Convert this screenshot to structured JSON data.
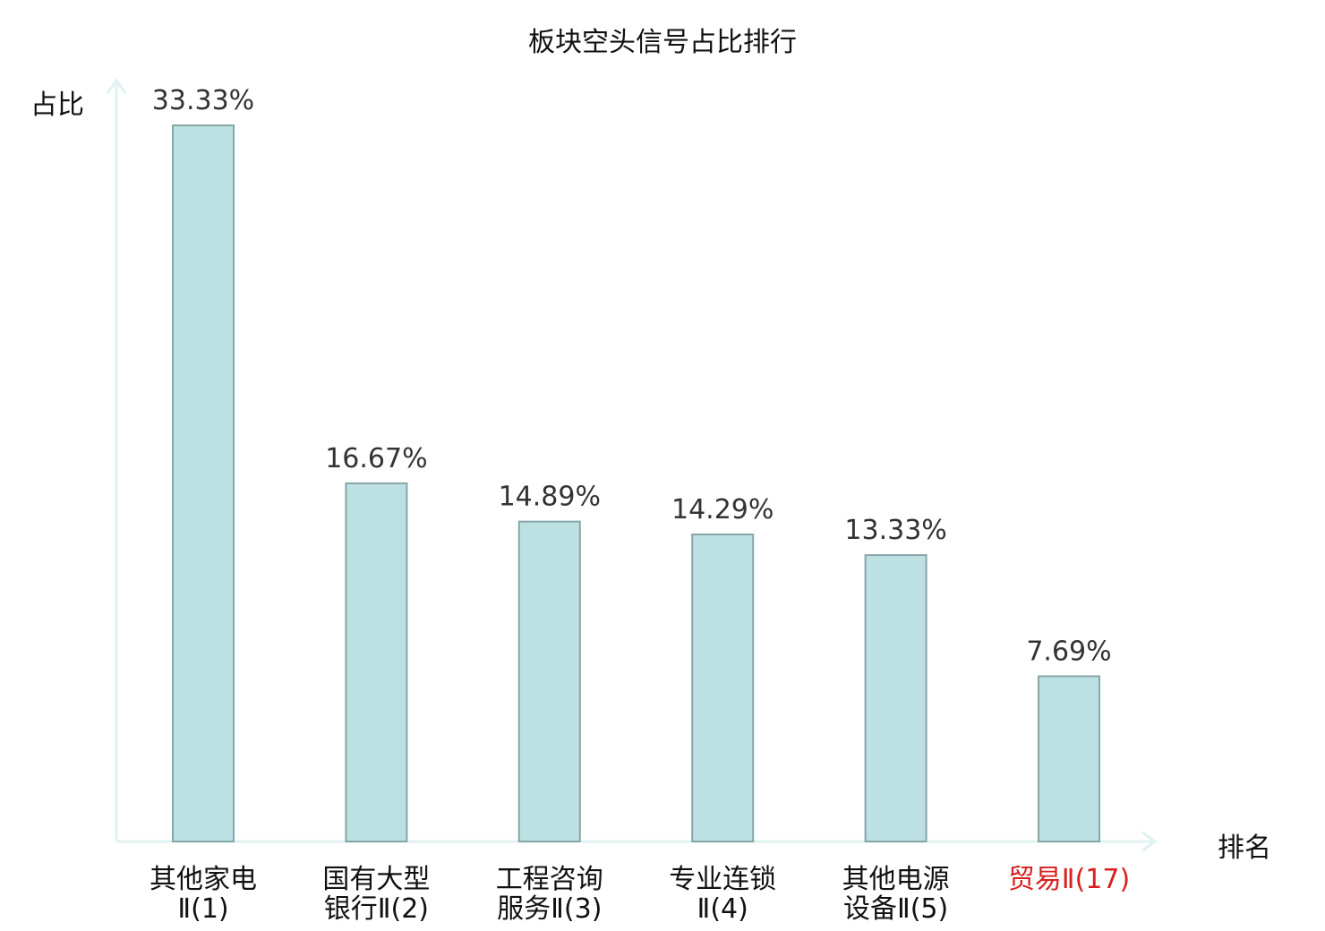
{
  "title": "板块空头信号占比排行",
  "colors": {
    "bar_fill": "#bde0e2",
    "bar_stroke": "#87a6a8",
    "axis": "#dff2f0",
    "value_label": "#333333",
    "highlight": "#d8201f"
  },
  "chart_data": {
    "type": "bar",
    "title": "板块空头信号占比排行",
    "xlabel": "排名",
    "ylabel": "占比",
    "ylim": [
      0,
      35
    ],
    "grid": false,
    "categories": [
      {
        "line1": "其他家电",
        "line2": "Ⅱ(1)",
        "highlight": false
      },
      {
        "line1": "国有大型",
        "line2": "银行Ⅱ(2)",
        "highlight": false
      },
      {
        "line1": "工程咨询",
        "line2": "服务Ⅱ(3)",
        "highlight": false
      },
      {
        "line1": "专业连锁",
        "line2": "Ⅱ(4)",
        "highlight": false
      },
      {
        "line1": "其他电源",
        "line2": "设备Ⅱ(5)",
        "highlight": false
      },
      {
        "line1": "贸易Ⅱ(17)",
        "line2": "",
        "highlight": true
      }
    ],
    "values": [
      33.33,
      16.67,
      14.89,
      14.29,
      13.33,
      7.69
    ],
    "value_labels": [
      "33.33%",
      "16.67%",
      "14.89%",
      "14.29%",
      "13.33%",
      "7.69%"
    ]
  }
}
